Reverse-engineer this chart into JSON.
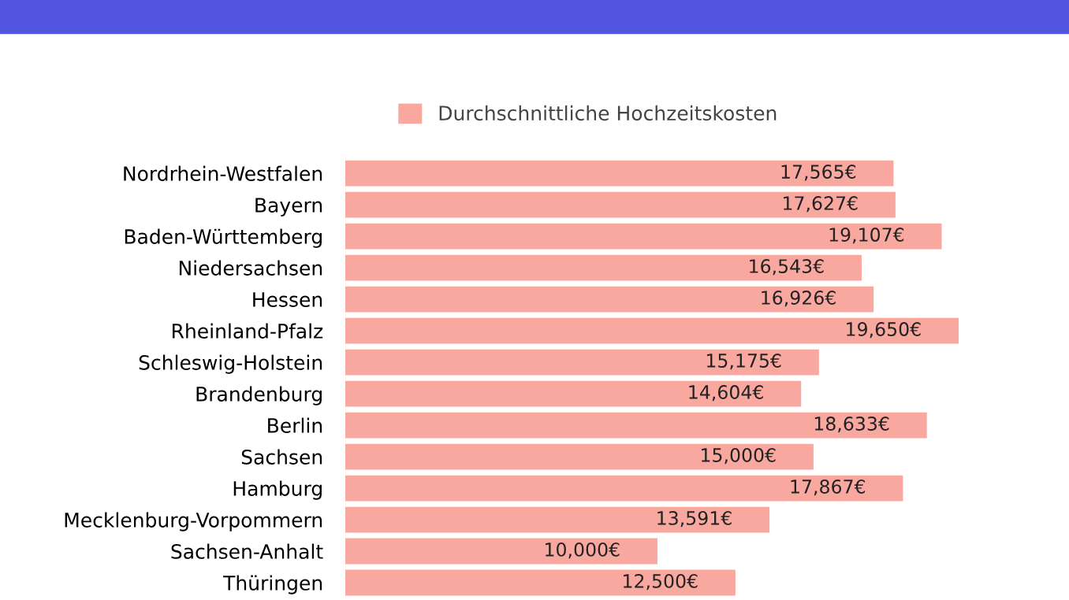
{
  "chart_data": {
    "type": "bar",
    "orientation": "horizontal",
    "categories": [
      "Nordrhein-Westfalen",
      "Bayern",
      "Baden-Württemberg",
      "Niedersachsen",
      "Hessen",
      "Rheinland-Pfalz",
      "Schleswig-Holstein",
      "Brandenburg",
      "Berlin",
      "Sachsen",
      "Hamburg",
      "Mecklenburg-Vorpommern",
      "Sachsen-Anhalt",
      "Thüringen"
    ],
    "series": [
      {
        "name": "Durchschnittliche Hochzeitskosten",
        "color": "#f9a8a0",
        "values": [
          17565,
          17627,
          19107,
          16543,
          16926,
          19650,
          15175,
          14604,
          18633,
          15000,
          17867,
          13591,
          10000,
          12500
        ],
        "value_labels": [
          "17,565€",
          "17,627€",
          "19,107€",
          "16,543€",
          "16,926€",
          "19,650€",
          "15,175€",
          "14,604€",
          "18,633€",
          "15,000€",
          "17,867€",
          "13,591€",
          "10,000€",
          "12,500€"
        ]
      }
    ],
    "legend": "top",
    "tick_labels": "y"
  }
}
